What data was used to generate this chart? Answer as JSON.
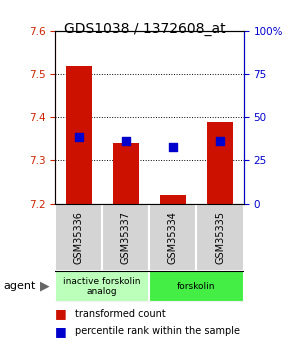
{
  "title": "GDS1038 / 1372608_at",
  "samples": [
    "GSM35336",
    "GSM35337",
    "GSM35334",
    "GSM35335"
  ],
  "red_values": [
    7.52,
    7.34,
    7.22,
    7.39
  ],
  "blue_values": [
    7.355,
    7.345,
    7.33,
    7.345
  ],
  "ylim_left": [
    7.2,
    7.6
  ],
  "ylim_right": [
    0,
    100
  ],
  "yticks_left": [
    7.2,
    7.3,
    7.4,
    7.5,
    7.6
  ],
  "yticks_right": [
    0,
    25,
    50,
    75,
    100
  ],
  "ytick_labels_right": [
    "0",
    "25",
    "50",
    "75",
    "100%"
  ],
  "groups": [
    {
      "label": "inactive forskolin\nanalog",
      "samples": [
        0,
        1
      ],
      "color": "#bbffbb"
    },
    {
      "label": "forskolin",
      "samples": [
        2,
        3
      ],
      "color": "#44ee44"
    }
  ],
  "bar_color": "#cc1100",
  "dot_color": "#0000cc",
  "bar_width": 0.55,
  "dot_size": 40,
  "agent_label": "agent",
  "legend": [
    {
      "label": "transformed count",
      "color": "#cc1100"
    },
    {
      "label": "percentile rank within the sample",
      "color": "#0000cc"
    }
  ],
  "title_fontsize": 10,
  "tick_fontsize": 7.5,
  "sample_fontsize": 7,
  "agent_fontsize": 8,
  "legend_fontsize": 7
}
